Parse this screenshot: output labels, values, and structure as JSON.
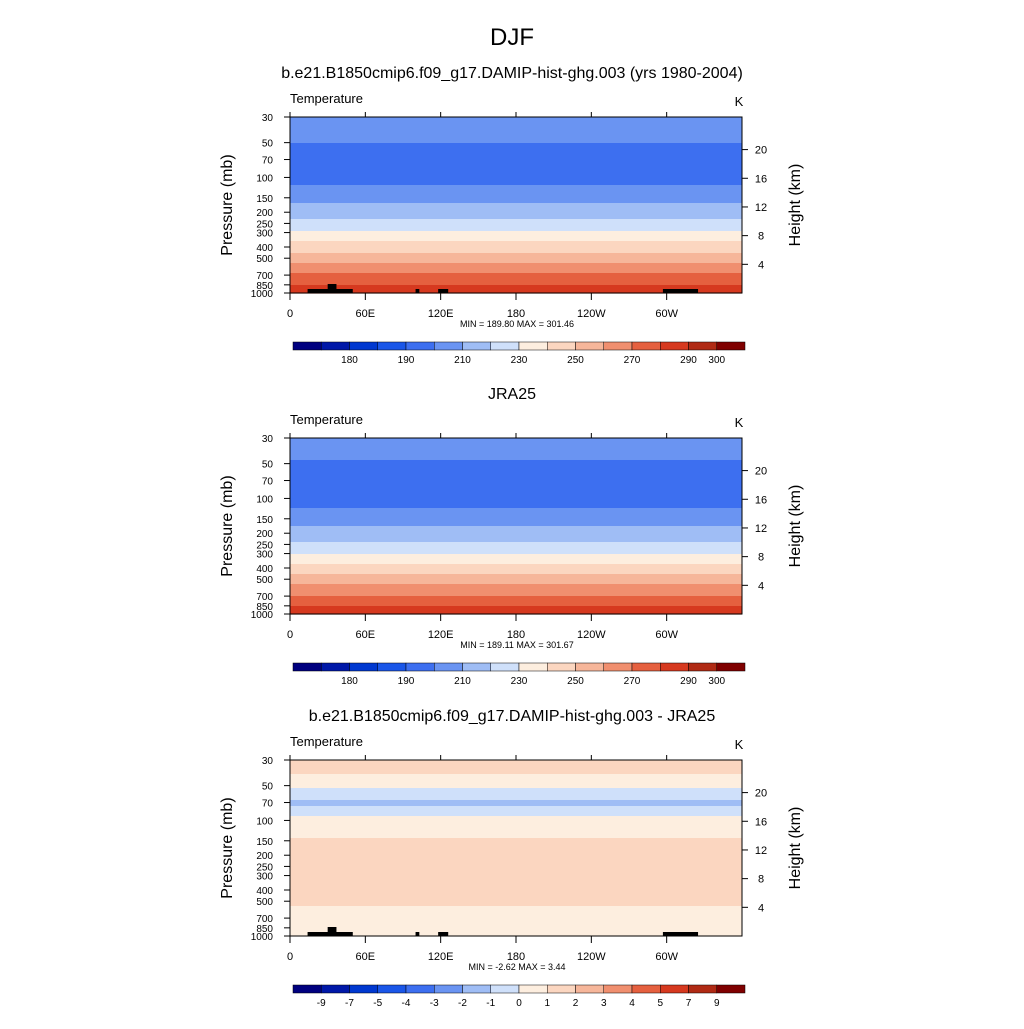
{
  "figure": {
    "title": "DJF"
  },
  "colors": {
    "temperature_fills": [
      "#00007f",
      "#0018a8",
      "#0038d0",
      "#1a56e8",
      "#3d6ff0",
      "#6a94f2",
      "#9fbdf5",
      "#cfe0fa",
      "#fdeedf",
      "#fbd6c0",
      "#f6b69a",
      "#f08f6f",
      "#e5603f",
      "#d6391f",
      "#b02a14",
      "#7f0000"
    ],
    "difference_fills": [
      "#00007f",
      "#0018a8",
      "#0038d0",
      "#1a56e8",
      "#3d6ff0",
      "#6a94f2",
      "#9fbdf5",
      "#cfe0fa",
      "#fdeedf",
      "#fbd6c0",
      "#f6b69a",
      "#f08f6f",
      "#e5603f",
      "#d6391f",
      "#b02a14",
      "#7f0000"
    ],
    "topography": "#000000"
  },
  "chart_data": [
    {
      "type": "heatmap",
      "title": "b.e21.B1850cmip6.f09_g17.DAMIP-hist-ghg.003 (yrs 1980-2004)",
      "variable_label": "Temperature",
      "units_label": "K",
      "ylabel": "Pressure (mb)",
      "ylabel_right": "Height (km)",
      "xlabel": "",
      "x_ticks": [
        "0",
        "60E",
        "120E",
        "180",
        "120W",
        "60W"
      ],
      "y_ticks": [
        "30",
        "50",
        "70",
        "100",
        "150",
        "200",
        "250",
        "300",
        "400",
        "500",
        "700",
        "850",
        "1000"
      ],
      "y_ticks_right": [
        "20",
        "16",
        "12",
        "8",
        "4"
      ],
      "xlim": [
        0,
        360
      ],
      "ylim": [
        1000,
        30
      ],
      "y_scale": "log",
      "stats_text": "MIN = 189.80  MAX = 301.46",
      "min": 189.8,
      "max": 301.46,
      "colorbar_labels": [
        "180",
        "190",
        "210",
        "230",
        "250",
        "270",
        "290",
        "300"
      ],
      "profile": [
        {
          "p": 30,
          "v": 208
        },
        {
          "p": 40,
          "v": 205
        },
        {
          "p": 50,
          "v": 200
        },
        {
          "p": 70,
          "v": 196
        },
        {
          "p": 100,
          "v": 196
        },
        {
          "p": 150,
          "v": 207
        },
        {
          "p": 200,
          "v": 214
        },
        {
          "p": 250,
          "v": 223
        },
        {
          "p": 300,
          "v": 231
        },
        {
          "p": 400,
          "v": 245
        },
        {
          "p": 500,
          "v": 256
        },
        {
          "p": 700,
          "v": 271
        },
        {
          "p": 850,
          "v": 280
        },
        {
          "p": 1000,
          "v": 290
        }
      ],
      "topography": true
    },
    {
      "type": "heatmap",
      "title": "JRA25",
      "variable_label": "Temperature",
      "units_label": "K",
      "ylabel": "Pressure (mb)",
      "ylabel_right": "Height (km)",
      "xlabel": "",
      "x_ticks": [
        "0",
        "60E",
        "120E",
        "180",
        "120W",
        "60W"
      ],
      "y_ticks": [
        "30",
        "50",
        "70",
        "100",
        "150",
        "200",
        "250",
        "300",
        "400",
        "500",
        "700",
        "850",
        "1000"
      ],
      "y_ticks_right": [
        "20",
        "16",
        "12",
        "8",
        "4"
      ],
      "xlim": [
        0,
        360
      ],
      "ylim": [
        1000,
        30
      ],
      "y_scale": "log",
      "stats_text": "MIN = 189.11  MAX = 301.67",
      "min": 189.11,
      "max": 301.67,
      "colorbar_labels": [
        "180",
        "190",
        "210",
        "230",
        "250",
        "270",
        "290",
        "300"
      ],
      "profile": [
        {
          "p": 30,
          "v": 206
        },
        {
          "p": 40,
          "v": 203
        },
        {
          "p": 50,
          "v": 199
        },
        {
          "p": 70,
          "v": 196
        },
        {
          "p": 100,
          "v": 194
        },
        {
          "p": 150,
          "v": 206
        },
        {
          "p": 200,
          "v": 214
        },
        {
          "p": 250,
          "v": 222
        },
        {
          "p": 300,
          "v": 230
        },
        {
          "p": 400,
          "v": 244
        },
        {
          "p": 500,
          "v": 255
        },
        {
          "p": 700,
          "v": 270
        },
        {
          "p": 850,
          "v": 279
        },
        {
          "p": 1000,
          "v": 289
        }
      ],
      "topography": false
    },
    {
      "type": "heatmap",
      "title": "b.e21.B1850cmip6.f09_g17.DAMIP-hist-ghg.003 - JRA25",
      "variable_label": "Temperature",
      "units_label": "K",
      "ylabel": "Pressure (mb)",
      "ylabel_right": "Height (km)",
      "xlabel": "",
      "x_ticks": [
        "0",
        "60E",
        "120E",
        "180",
        "120W",
        "60W"
      ],
      "y_ticks": [
        "30",
        "50",
        "70",
        "100",
        "150",
        "200",
        "250",
        "300",
        "400",
        "500",
        "700",
        "850",
        "1000"
      ],
      "y_ticks_right": [
        "20",
        "16",
        "12",
        "8",
        "4"
      ],
      "xlim": [
        0,
        360
      ],
      "ylim": [
        1000,
        30
      ],
      "y_scale": "log",
      "stats_text": "MIN =  -2.62  MAX =   3.44",
      "min": -2.62,
      "max": 3.44,
      "colorbar_labels": [
        "-9",
        "-7",
        "-5",
        "-4",
        "-3",
        "-2",
        "-1",
        "0",
        "1",
        "2",
        "3",
        "4",
        "5",
        "7",
        "9"
      ],
      "profile": [
        {
          "p": 30,
          "v": 1.6
        },
        {
          "p": 40,
          "v": 1.0
        },
        {
          "p": 50,
          "v": 0.3
        },
        {
          "p": 60,
          "v": -0.6
        },
        {
          "p": 70,
          "v": -1.3
        },
        {
          "p": 85,
          "v": -0.4
        },
        {
          "p": 100,
          "v": 0.4
        },
        {
          "p": 150,
          "v": 1.1
        },
        {
          "p": 300,
          "v": 1.2
        },
        {
          "p": 500,
          "v": 1.1
        },
        {
          "p": 700,
          "v": 0.7
        },
        {
          "p": 850,
          "v": 0.5
        },
        {
          "p": 1000,
          "v": 0.4
        }
      ],
      "topography": true
    }
  ]
}
